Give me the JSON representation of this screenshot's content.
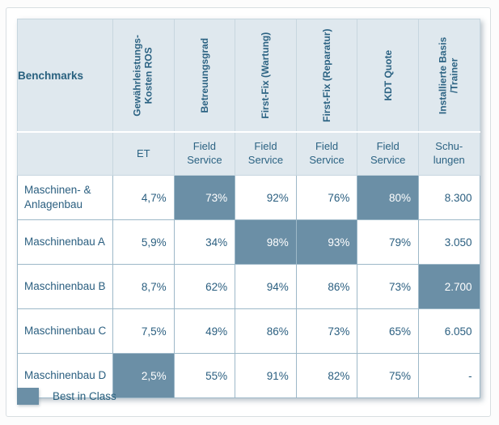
{
  "chart_data": {
    "type": "table",
    "title": "Benchmarks",
    "legend_label": "Best in Class",
    "accent_color": "#6b8fa6",
    "header_bg_color": "#dfe8ee",
    "text_color": "#2b5f80",
    "columns": [
      {
        "metric": "Gewährleistungs-Kosten ROS",
        "unit": "ET"
      },
      {
        "metric": "Betreuungsgrad",
        "unit": "Field Service"
      },
      {
        "metric": "First-Fix (Wartung)",
        "unit": "Field Service"
      },
      {
        "metric": "First-Fix (Reparatur)",
        "unit": "Field Service"
      },
      {
        "metric": "KDT Quote",
        "unit": "Field Service"
      },
      {
        "metric": "Installierte Basis /Trainer",
        "unit": "Schu-lungen"
      }
    ],
    "rows": [
      {
        "label": "Maschinen- & Anlagenbau",
        "values": [
          "4,7%",
          "73%",
          "92%",
          "76%",
          "80%",
          "8.300"
        ],
        "best": [
          false,
          true,
          false,
          false,
          true,
          false
        ]
      },
      {
        "label": "Maschinenbau A",
        "values": [
          "5,9%",
          "34%",
          "98%",
          "93%",
          "79%",
          "3.050"
        ],
        "best": [
          false,
          false,
          true,
          true,
          false,
          false
        ]
      },
      {
        "label": "Maschinenbau B",
        "values": [
          "8,7%",
          "62%",
          "94%",
          "86%",
          "73%",
          "2.700"
        ],
        "best": [
          false,
          false,
          false,
          false,
          false,
          true
        ]
      },
      {
        "label": "Maschinenbau C",
        "values": [
          "7,5%",
          "49%",
          "86%",
          "73%",
          "65%",
          "6.050"
        ],
        "best": [
          false,
          false,
          false,
          false,
          false,
          false
        ]
      },
      {
        "label": "Maschinenbau D",
        "values": [
          "2,5%",
          "55%",
          "91%",
          "82%",
          "75%",
          "-"
        ],
        "best": [
          true,
          false,
          false,
          false,
          false,
          false
        ]
      }
    ]
  }
}
